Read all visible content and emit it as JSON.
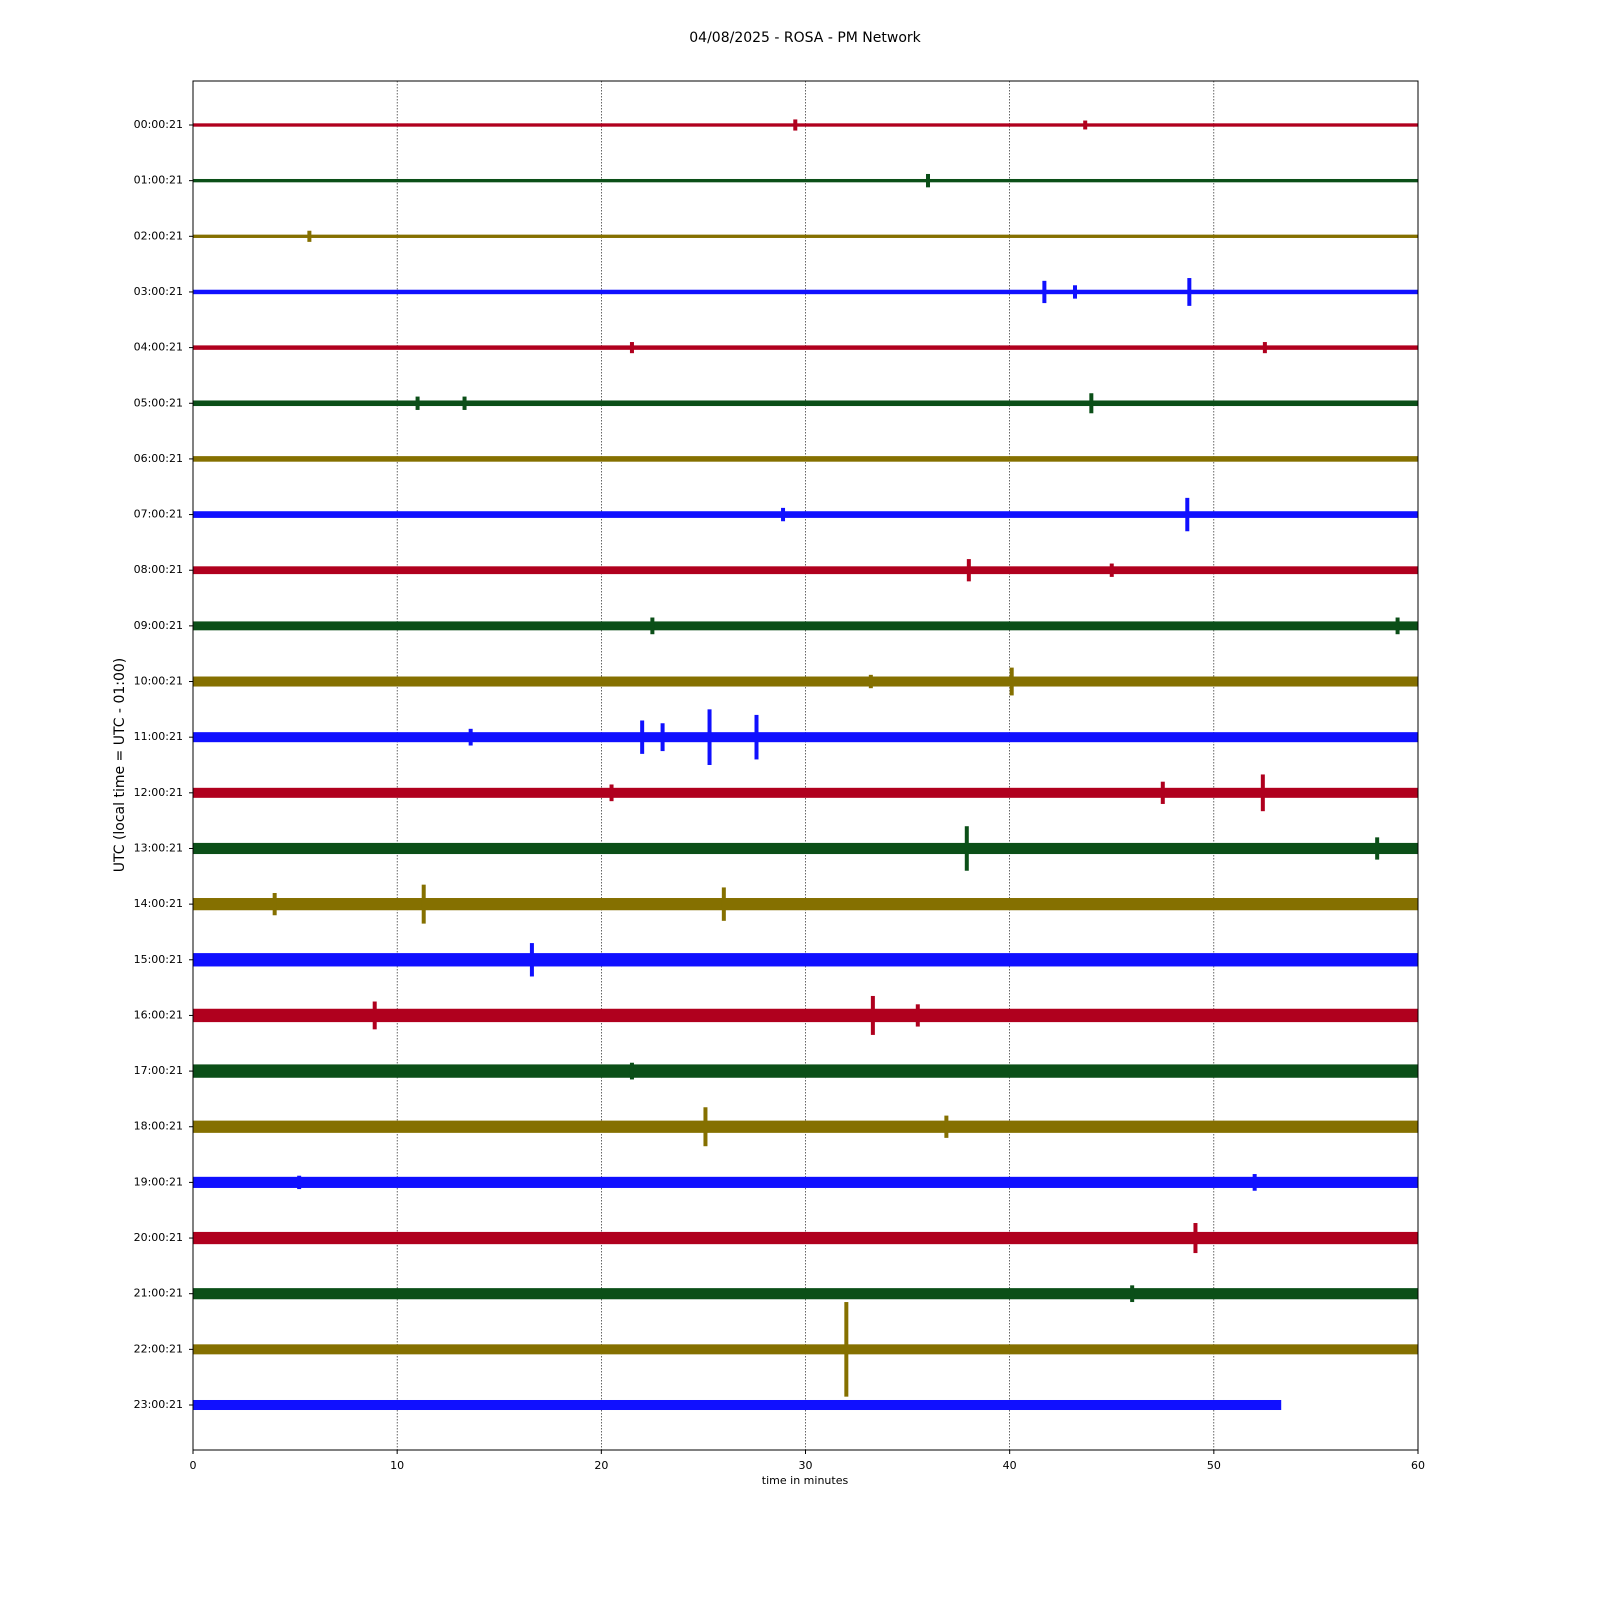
{
  "chart_data": {
    "type": "helicorder",
    "title": "04/08/2025 - ROSA - PM Network",
    "xlabel": "time in minutes",
    "ylabel": "UTC (local time = UTC - 01:00)",
    "xlim": [
      0,
      60
    ],
    "xticks": [
      0,
      10,
      20,
      30,
      40,
      50,
      60
    ],
    "grid": true,
    "rows": [
      {
        "label": "00:00:21",
        "color": "#b0001e",
        "end": 60,
        "band": 0.03,
        "bursts": [
          {
            "x": 29.5,
            "amp": 0.1
          },
          {
            "x": 43.7,
            "amp": 0.08
          }
        ]
      },
      {
        "label": "01:00:21",
        "color": "#0b4f18",
        "end": 60,
        "band": 0.03,
        "bursts": [
          {
            "x": 36,
            "amp": 0.12
          }
        ]
      },
      {
        "label": "02:00:21",
        "color": "#857000",
        "end": 60,
        "band": 0.03,
        "bursts": [
          {
            "x": 5.7,
            "amp": 0.1
          }
        ]
      },
      {
        "label": "03:00:21",
        "color": "#1010ff",
        "end": 60,
        "band": 0.04,
        "bursts": [
          {
            "x": 41.7,
            "amp": 0.2
          },
          {
            "x": 43.2,
            "amp": 0.12
          },
          {
            "x": 48.8,
            "amp": 0.25
          }
        ]
      },
      {
        "label": "04:00:21",
        "color": "#b0001e",
        "end": 60,
        "band": 0.04,
        "bursts": [
          {
            "x": 21.5,
            "amp": 0.1
          },
          {
            "x": 52.5,
            "amp": 0.1
          }
        ]
      },
      {
        "label": "05:00:21",
        "color": "#0b4f18",
        "end": 60,
        "band": 0.05,
        "bursts": [
          {
            "x": 11,
            "amp": 0.12
          },
          {
            "x": 13.3,
            "amp": 0.12
          },
          {
            "x": 44,
            "amp": 0.18
          }
        ]
      },
      {
        "label": "06:00:21",
        "color": "#857000",
        "end": 60,
        "band": 0.05,
        "bursts": []
      },
      {
        "label": "07:00:21",
        "color": "#1010ff",
        "end": 60,
        "band": 0.06,
        "bursts": [
          {
            "x": 28.9,
            "amp": 0.12
          },
          {
            "x": 48.7,
            "amp": 0.3
          }
        ]
      },
      {
        "label": "08:00:21",
        "color": "#b0001e",
        "end": 60,
        "band": 0.07,
        "bursts": [
          {
            "x": 38,
            "amp": 0.2
          },
          {
            "x": 45,
            "amp": 0.12
          }
        ]
      },
      {
        "label": "09:00:21",
        "color": "#0b4f18",
        "end": 60,
        "band": 0.08,
        "bursts": [
          {
            "x": 22.5,
            "amp": 0.15
          },
          {
            "x": 59,
            "amp": 0.15
          }
        ]
      },
      {
        "label": "10:00:21",
        "color": "#857000",
        "end": 60,
        "band": 0.09,
        "bursts": [
          {
            "x": 33.2,
            "amp": 0.12
          },
          {
            "x": 40.1,
            "amp": 0.25
          }
        ]
      },
      {
        "label": "11:00:21",
        "color": "#1010ff",
        "end": 60,
        "band": 0.09,
        "bursts": [
          {
            "x": 13.6,
            "amp": 0.15
          },
          {
            "x": 22,
            "amp": 0.3
          },
          {
            "x": 23,
            "amp": 0.25
          },
          {
            "x": 25.3,
            "amp": 0.5
          },
          {
            "x": 27.6,
            "amp": 0.4
          }
        ]
      },
      {
        "label": "12:00:21",
        "color": "#b0001e",
        "end": 60,
        "band": 0.09,
        "bursts": [
          {
            "x": 20.5,
            "amp": 0.15
          },
          {
            "x": 47.5,
            "amp": 0.2
          },
          {
            "x": 52.4,
            "amp": 0.33
          }
        ]
      },
      {
        "label": "13:00:21",
        "color": "#0b4f18",
        "end": 60,
        "band": 0.1,
        "bursts": [
          {
            "x": 37.9,
            "amp": 0.4
          },
          {
            "x": 58,
            "amp": 0.2
          }
        ]
      },
      {
        "label": "14:00:21",
        "color": "#857000",
        "end": 60,
        "band": 0.11,
        "bursts": [
          {
            "x": 4,
            "amp": 0.2
          },
          {
            "x": 11.3,
            "amp": 0.35
          },
          {
            "x": 26,
            "amp": 0.3
          }
        ]
      },
      {
        "label": "15:00:21",
        "color": "#1010ff",
        "end": 60,
        "band": 0.12,
        "bursts": [
          {
            "x": 16.6,
            "amp": 0.3
          }
        ]
      },
      {
        "label": "16:00:21",
        "color": "#b0001e",
        "end": 60,
        "band": 0.12,
        "bursts": [
          {
            "x": 8.9,
            "amp": 0.25
          },
          {
            "x": 33.3,
            "amp": 0.35
          },
          {
            "x": 35.5,
            "amp": 0.2
          }
        ]
      },
      {
        "label": "17:00:21",
        "color": "#0b4f18",
        "end": 60,
        "band": 0.12,
        "bursts": [
          {
            "x": 21.5,
            "amp": 0.15
          }
        ]
      },
      {
        "label": "18:00:21",
        "color": "#857000",
        "end": 60,
        "band": 0.11,
        "bursts": [
          {
            "x": 25.1,
            "amp": 0.35
          },
          {
            "x": 36.9,
            "amp": 0.2
          }
        ]
      },
      {
        "label": "19:00:21",
        "color": "#1010ff",
        "end": 60,
        "band": 0.1,
        "bursts": [
          {
            "x": 5.2,
            "amp": 0.12
          },
          {
            "x": 52,
            "amp": 0.15
          }
        ]
      },
      {
        "label": "20:00:21",
        "color": "#b0001e",
        "end": 60,
        "band": 0.11,
        "bursts": [
          {
            "x": 49.1,
            "amp": 0.27
          }
        ]
      },
      {
        "label": "21:00:21",
        "color": "#0b4f18",
        "end": 60,
        "band": 0.1,
        "bursts": [
          {
            "x": 46,
            "amp": 0.15
          }
        ]
      },
      {
        "label": "22:00:21",
        "color": "#857000",
        "end": 60,
        "band": 0.09,
        "bursts": [
          {
            "x": 32,
            "amp": 0.85
          }
        ]
      },
      {
        "label": "23:00:21",
        "color": "#1010ff",
        "end": 53.3,
        "band": 0.09,
        "bursts": []
      }
    ]
  }
}
